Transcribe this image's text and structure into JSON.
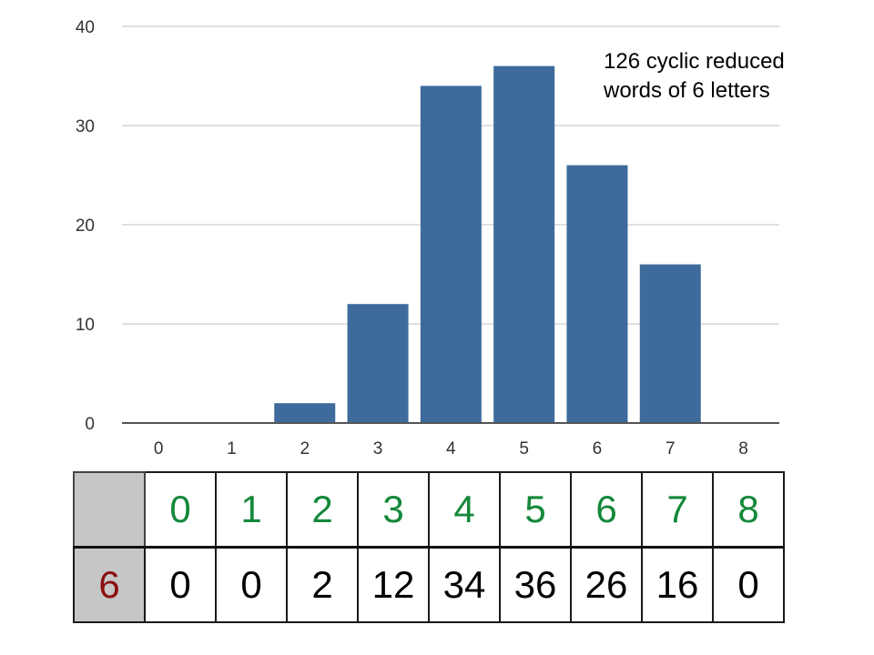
{
  "chart_data": {
    "type": "bar",
    "categories": [
      "0",
      "1",
      "2",
      "3",
      "4",
      "5",
      "6",
      "7",
      "8"
    ],
    "values": [
      0,
      0,
      2,
      12,
      34,
      36,
      26,
      16,
      0
    ],
    "ylim": [
      0,
      40
    ],
    "yticks": [
      "0",
      "10",
      "20",
      "30",
      "40"
    ],
    "grid": true,
    "bar_color": "#3e6b9c",
    "annotation": {
      "line1": "126  cyclic reduced",
      "line2": "words of 6 letters"
    }
  },
  "table": {
    "corner": "",
    "headers": [
      "0",
      "1",
      "2",
      "3",
      "4",
      "5",
      "6",
      "7",
      "8"
    ],
    "row_label": "6",
    "row_values": [
      "0",
      "0",
      "2",
      "12",
      "34",
      "36",
      "26",
      "16",
      "0"
    ]
  },
  "colors": {
    "header_text": "#14883a",
    "row_label_text": "#8b0f0f",
    "shaded_cell": "#c6c6c6"
  }
}
